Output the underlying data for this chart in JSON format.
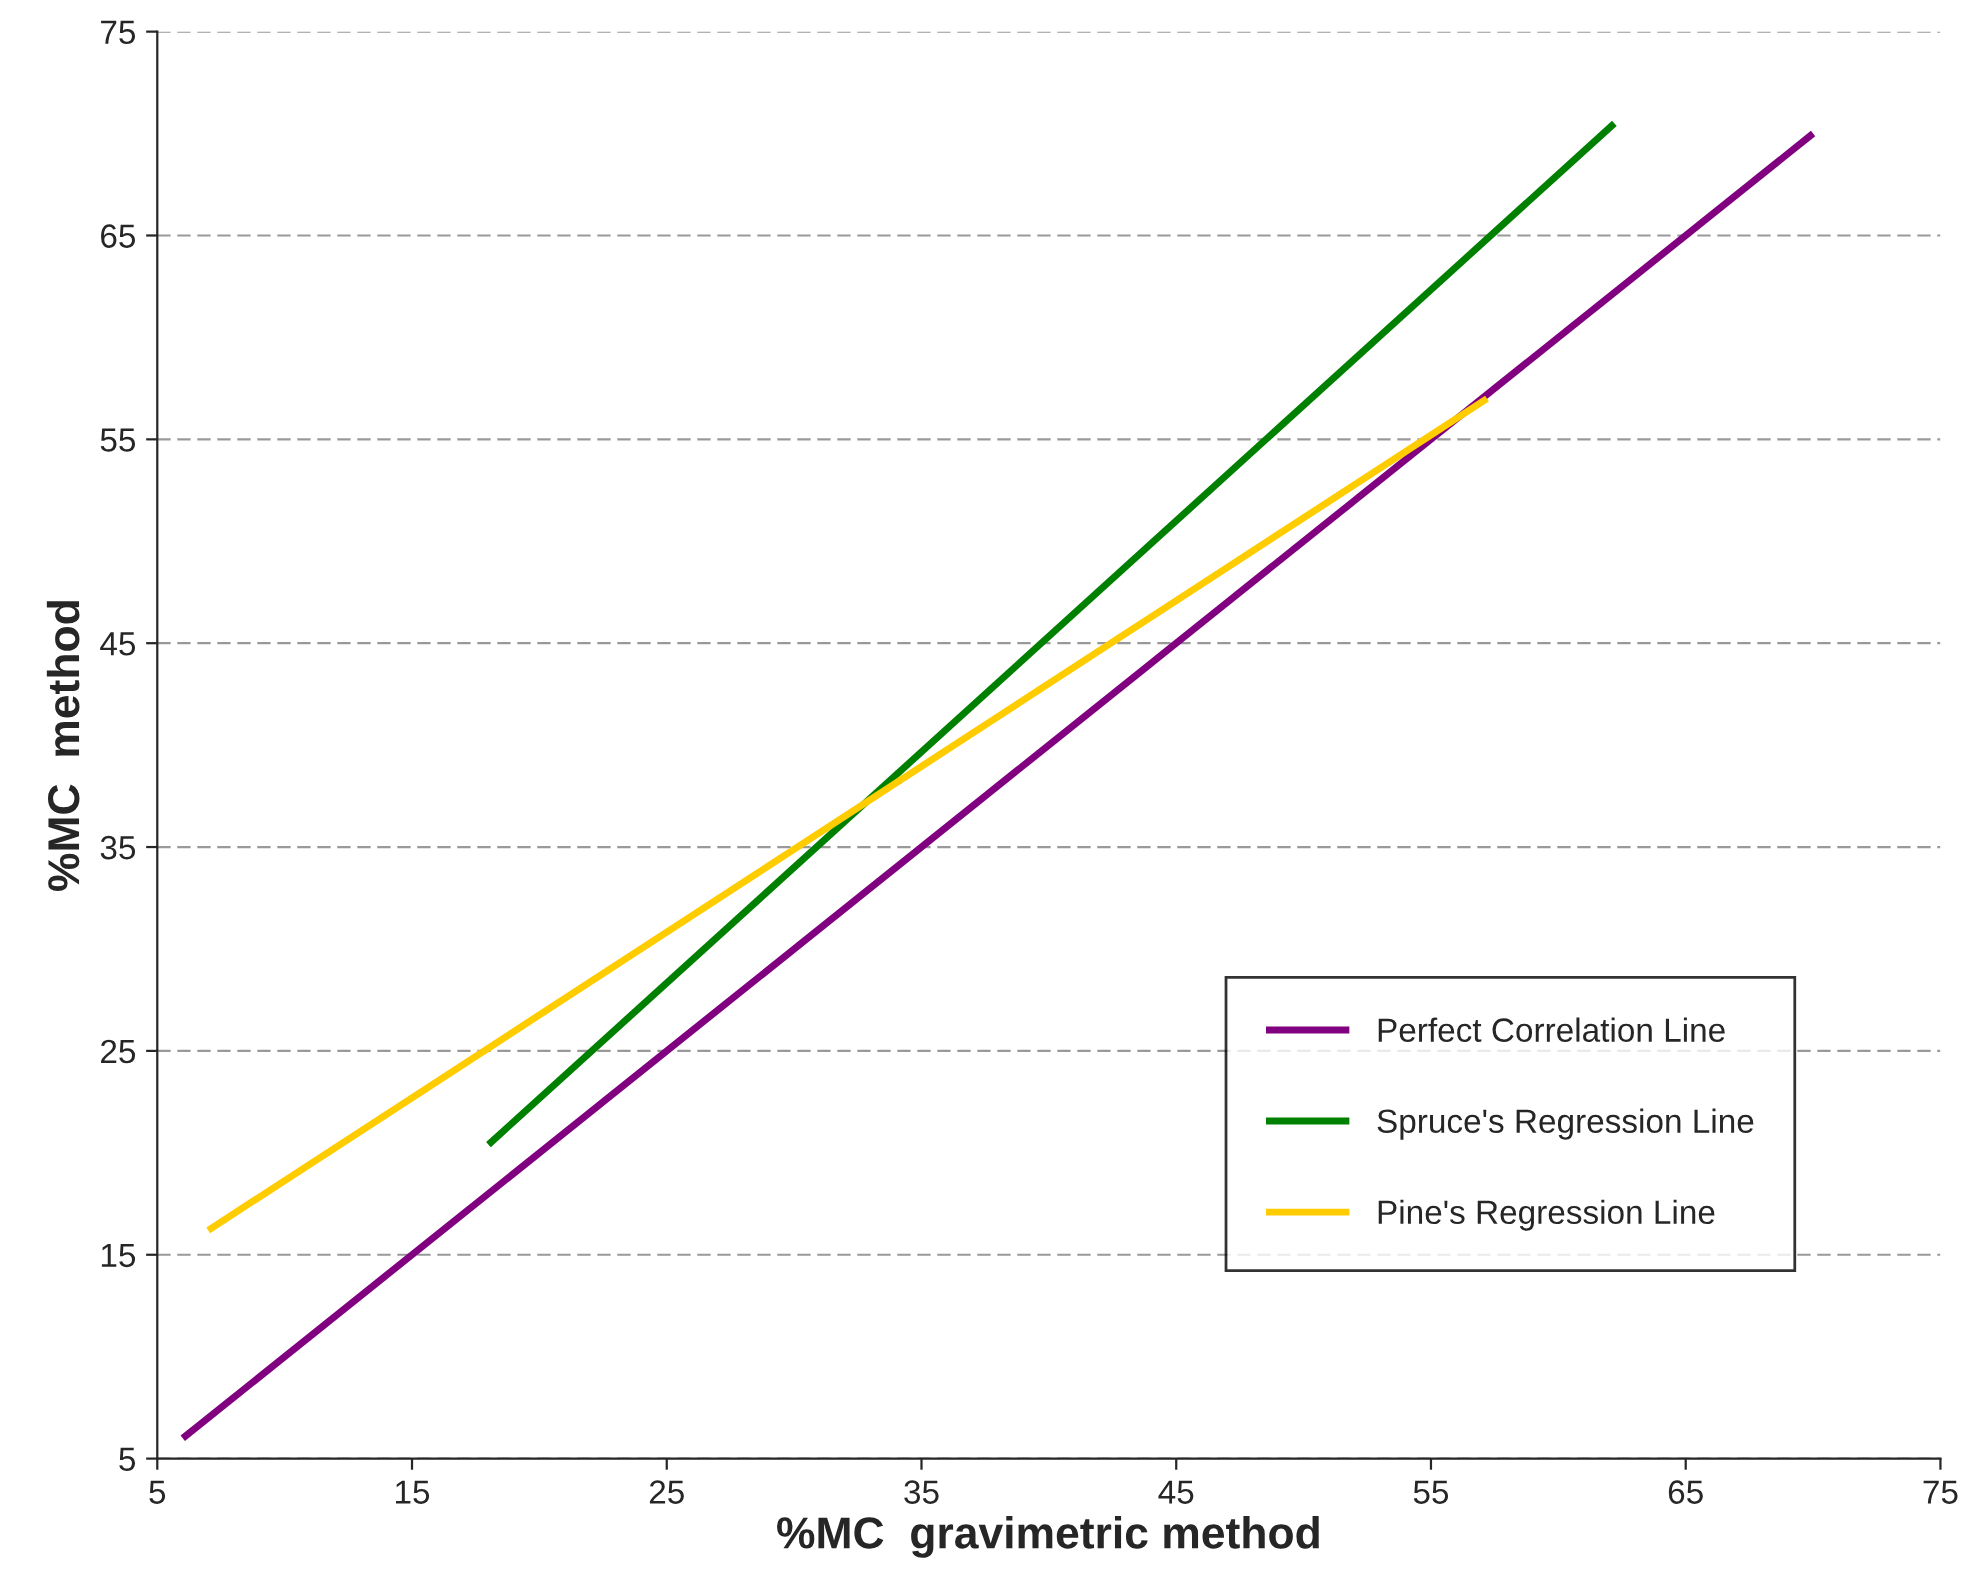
{
  "chart_data": {
    "type": "line",
    "xlabel": "%MC  gravimetric method",
    "ylabel": "%MC  method",
    "series": [
      {
        "name": "Perfect Correlation Line",
        "color": "#800080",
        "x": [
          6,
          70
        ],
        "values": [
          6,
          70
        ]
      },
      {
        "name": "Spruce's Regression Line",
        "color": "#008000",
        "x": [
          18,
          62.2
        ],
        "values": [
          20.4,
          70.5
        ]
      },
      {
        "name": "Pine's Regression Line",
        "color": "#ffcc00",
        "x": [
          7,
          57.2
        ],
        "values": [
          16.2,
          57
        ]
      }
    ],
    "xlim": [
      5,
      75
    ],
    "ylim": [
      5,
      75
    ],
    "xticks": [
      5,
      15,
      25,
      35,
      45,
      55,
      65,
      75
    ],
    "yticks": [
      5,
      15,
      25,
      35,
      45,
      55,
      65,
      75
    ],
    "grid": "y",
    "legend": "bottom right",
    "marker": "none",
    "line_style": "solid"
  }
}
